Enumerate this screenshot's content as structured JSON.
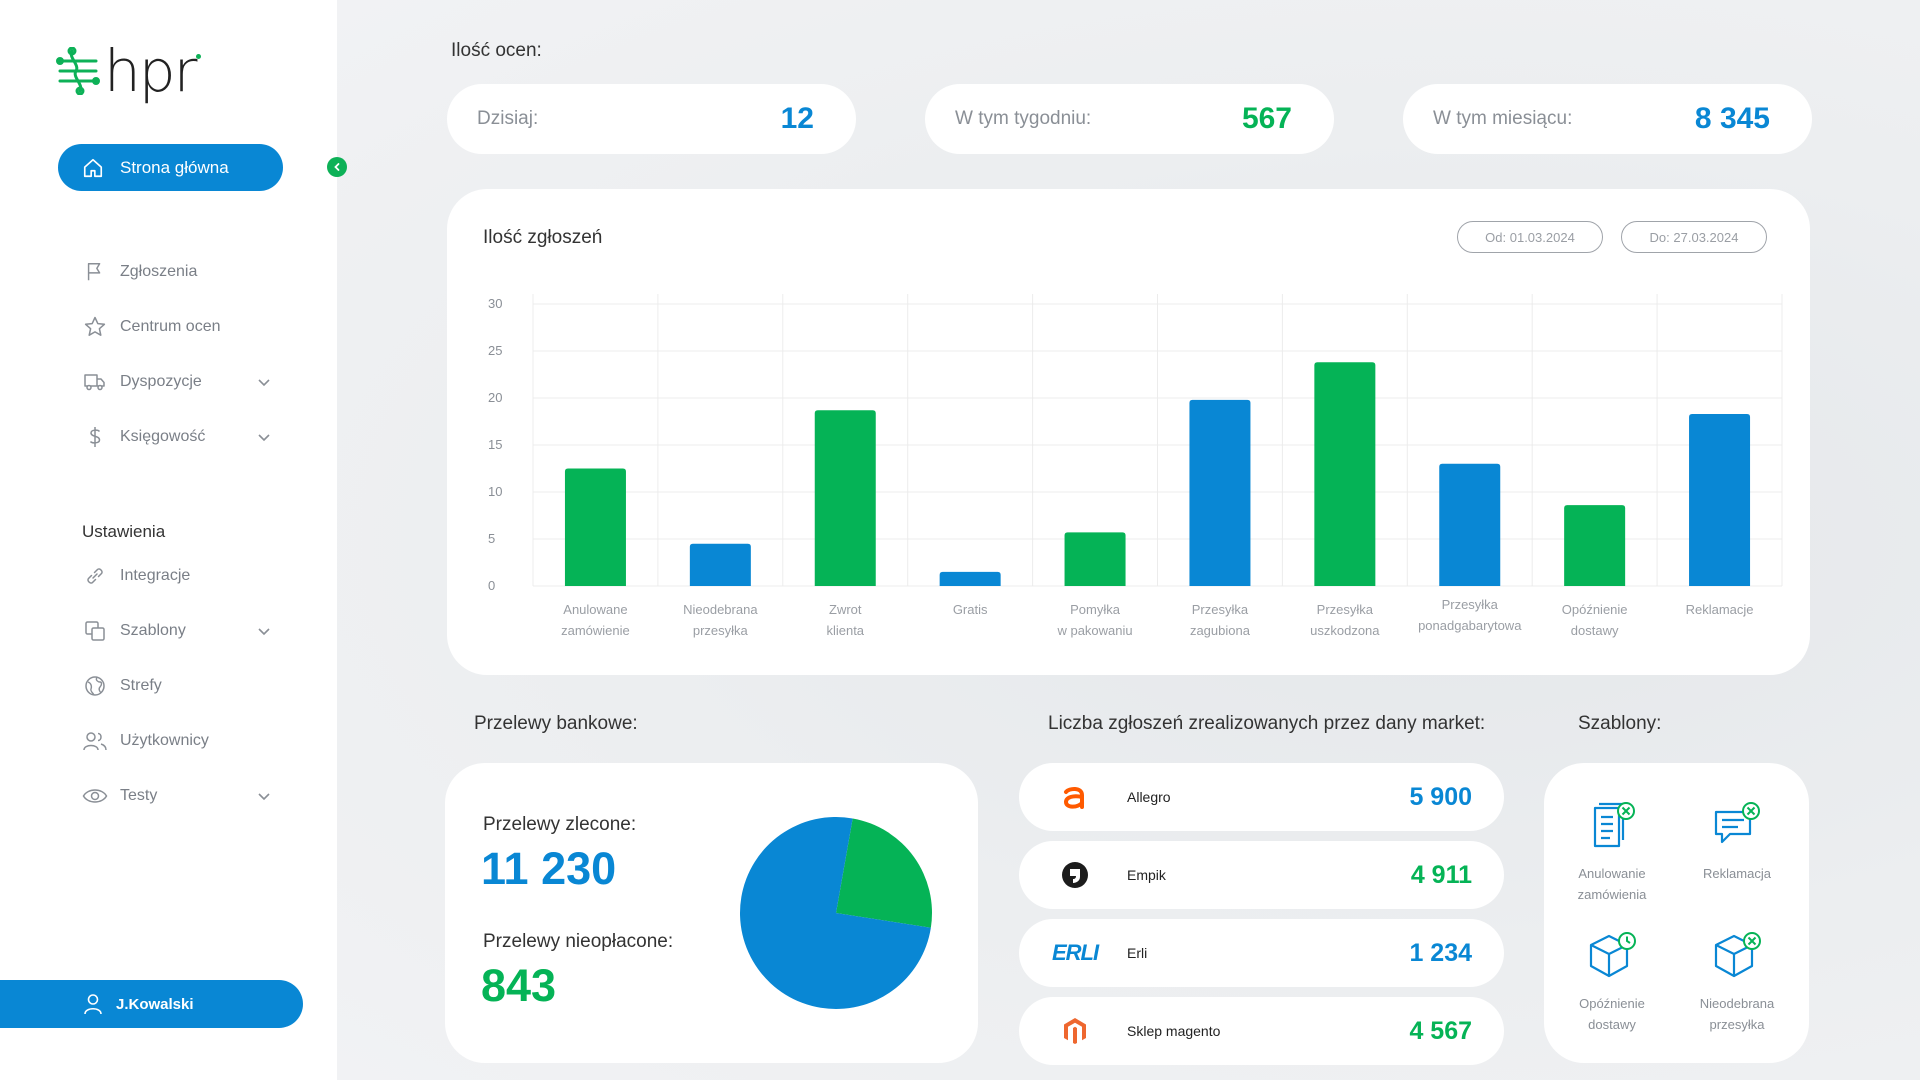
{
  "brand": {
    "name": "hpr"
  },
  "sidebar": {
    "home": "Strona główna",
    "items": [
      {
        "label": "Zgłoszenia",
        "icon": "flag-icon",
        "chevron": false
      },
      {
        "label": "Centrum ocen",
        "icon": "star-icon",
        "chevron": false
      },
      {
        "label": "Dyspozycje",
        "icon": "truck-icon",
        "chevron": true
      },
      {
        "label": "Księgowość",
        "icon": "dollar-icon",
        "chevron": true
      }
    ],
    "settings_title": "Ustawienia",
    "settings_items": [
      {
        "label": "Integracje",
        "icon": "link-icon",
        "chevron": false
      },
      {
        "label": "Szablony",
        "icon": "copy-icon",
        "chevron": true
      },
      {
        "label": "Strefy",
        "icon": "globe-icon",
        "chevron": false
      },
      {
        "label": "Użytkownicy",
        "icon": "users-icon",
        "chevron": false
      },
      {
        "label": "Testy",
        "icon": "eye-icon",
        "chevron": true
      }
    ],
    "user": "J.Kowalski"
  },
  "ratings": {
    "title": "Ilość ocen:",
    "today_label": "Dzisiaj:",
    "today_value": "12",
    "week_label": "W tym tygodniu:",
    "week_value": "567",
    "month_label": "W tym miesiącu:",
    "month_value": "8 345"
  },
  "report": {
    "title": "Ilość zgłoszeń",
    "date_from": "Od: 01.03.2024",
    "date_to": "Do: 27.03.2024"
  },
  "chart_data": {
    "type": "bar",
    "title": "Ilość zgłoszeń",
    "categories": [
      [
        "Anulowane",
        "zamówienie"
      ],
      [
        "Nieodebrana",
        "przesyłka"
      ],
      [
        "Zwrot",
        "klienta"
      ],
      [
        "Gratis"
      ],
      [
        "Pomyłka",
        "w pakowaniu"
      ],
      [
        "Przesyłka",
        "zagubiona"
      ],
      [
        "Przesyłka",
        "uszkodzona"
      ],
      [
        "Przesyłka",
        "ponadgabarytowa"
      ],
      [
        "Opóźnienie",
        "dostawy"
      ],
      [
        "Reklamacje"
      ]
    ],
    "values": [
      12.5,
      4.5,
      18.7,
      1.5,
      5.7,
      19.8,
      23.8,
      13.0,
      8.6,
      18.3
    ],
    "bar_colors": [
      "#05b356",
      "#0987d4",
      "#05b356",
      "#0987d4",
      "#05b356",
      "#0987d4",
      "#05b356",
      "#0987d4",
      "#05b356",
      "#0987d4"
    ],
    "yticks": [
      0,
      5,
      10,
      15,
      20,
      25,
      30
    ],
    "ylim": [
      0,
      30
    ],
    "grid": true
  },
  "transfers": {
    "title": "Przelewy bankowe:",
    "ordered_label": "Przelewy zlecone:",
    "ordered_value": "11 230",
    "unpaid_label": "Przelewy nieopłacone:",
    "unpaid_value": "843",
    "pie": [
      {
        "value": 11230,
        "color": "#0987d4"
      },
      {
        "value": 843,
        "color": "#05b356"
      }
    ]
  },
  "markets": {
    "title": "Liczba zgłoszeń zrealizowanych przez dany market:",
    "items": [
      {
        "name": "Allegro",
        "value": "5 900",
        "color": "#0987d4",
        "icon": "allegro-logo"
      },
      {
        "name": "Empik",
        "value": "4 911",
        "color": "#05b356",
        "icon": "empik-logo"
      },
      {
        "name": "Erli",
        "value": "1 234",
        "color": "#0987d4",
        "icon": "erli-logo",
        "logo_text": "ERLI"
      },
      {
        "name": "Sklep magento",
        "value": "4 567",
        "color": "#05b356",
        "icon": "magento-logo"
      }
    ]
  },
  "templates": {
    "title": "Szablony:",
    "items": [
      {
        "l1": "Anulowanie",
        "l2": "zamówienia",
        "icon": "document-cancel-icon"
      },
      {
        "l1": "Reklamacja",
        "l2": "",
        "icon": "chat-cancel-icon"
      },
      {
        "l1": "Opóźnienie",
        "l2": "dostawy",
        "icon": "box-clock-icon"
      },
      {
        "l1": "Nieodebrana",
        "l2": "przesyłka",
        "icon": "box-cancel-icon"
      }
    ]
  },
  "colors": {
    "blue": "#0987d4",
    "green": "#05b356",
    "allegro": "#ff5a00",
    "magento": "#ee672f"
  }
}
